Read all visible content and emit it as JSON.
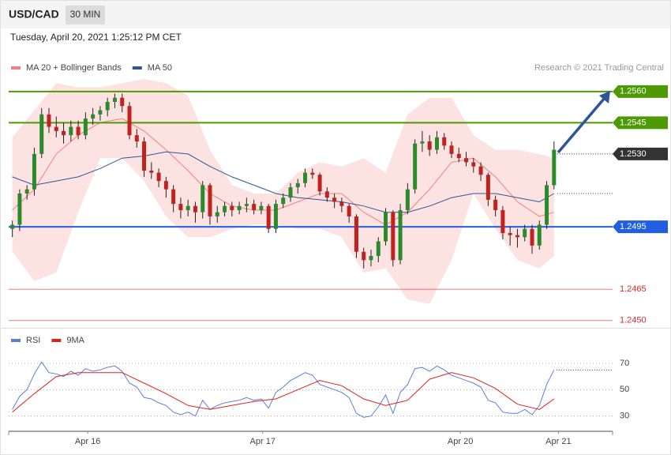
{
  "header": {
    "symbol": "USD/CAD",
    "interval": "30 MIN",
    "timestamp": "Tuesday, April 20, 2021 1:25:12 PM CET"
  },
  "chart_data": [
    {
      "type": "candlestick",
      "credit": "Research © 2021 Trading Central",
      "up_color": "#2b8a2b",
      "down_color": "#c0221f",
      "xlim": [
        -0.5,
        82
      ],
      "ylim": [
        1.2448,
        1.2566
      ],
      "ohlc": [
        [
          1.2494,
          1.2498,
          1.249,
          1.2496
        ],
        [
          1.2496,
          1.2513,
          1.2493,
          1.2511
        ],
        [
          1.2511,
          1.2515,
          1.2508,
          1.2513
        ],
        [
          1.2513,
          1.2533,
          1.251,
          1.253
        ],
        [
          1.253,
          1.2552,
          1.2528,
          1.2549
        ],
        [
          1.2549,
          1.2552,
          1.254,
          1.2543
        ],
        [
          1.2543,
          1.2548,
          1.2538,
          1.2541
        ],
        [
          1.2541,
          1.2545,
          1.2535,
          1.2539
        ],
        [
          1.2539,
          1.2546,
          1.2536,
          1.2543
        ],
        [
          1.2543,
          1.2546,
          1.2537,
          1.2539
        ],
        [
          1.2539,
          1.255,
          1.2537,
          1.2547
        ],
        [
          1.2547,
          1.2552,
          1.2544,
          1.2549
        ],
        [
          1.2549,
          1.2553,
          1.2546,
          1.2551
        ],
        [
          1.2551,
          1.2557,
          1.2548,
          1.2555
        ],
        [
          1.2555,
          1.2559,
          1.2552,
          1.2557
        ],
        [
          1.2557,
          1.2559,
          1.255,
          1.2553
        ],
        [
          1.2553,
          1.2555,
          1.2537,
          1.2539
        ],
        [
          1.2539,
          1.2542,
          1.2533,
          1.2536
        ],
        [
          1.2536,
          1.2538,
          1.2519,
          1.2522
        ],
        [
          1.2522,
          1.2526,
          1.2518,
          1.2521
        ],
        [
          1.2521,
          1.2523,
          1.2514,
          1.2517
        ],
        [
          1.2517,
          1.2519,
          1.2509,
          1.2513
        ],
        [
          1.2513,
          1.2515,
          1.2502,
          1.2506
        ],
        [
          1.2506,
          1.2509,
          1.2499,
          1.2503
        ],
        [
          1.2503,
          1.2508,
          1.25,
          1.2505
        ],
        [
          1.2505,
          1.2507,
          1.2497,
          1.2502
        ],
        [
          1.2502,
          1.2517,
          1.2499,
          1.2515
        ],
        [
          1.2515,
          1.2516,
          1.2496,
          1.25
        ],
        [
          1.25,
          1.2505,
          1.2497,
          1.2502
        ],
        [
          1.2502,
          1.2507,
          1.25,
          1.2505
        ],
        [
          1.2505,
          1.2507,
          1.25,
          1.2503
        ],
        [
          1.2503,
          1.2507,
          1.2501,
          1.2505
        ],
        [
          1.2505,
          1.2509,
          1.2502,
          1.2506
        ],
        [
          1.2506,
          1.2508,
          1.2501,
          1.2503
        ],
        [
          1.2503,
          1.2507,
          1.2501,
          1.2505
        ],
        [
          1.2505,
          1.2506,
          1.2492,
          1.2494
        ],
        [
          1.2494,
          1.2508,
          1.2492,
          1.2506
        ],
        [
          1.2506,
          1.2511,
          1.2504,
          1.2509
        ],
        [
          1.2509,
          1.2516,
          1.2507,
          1.2514
        ],
        [
          1.2514,
          1.2518,
          1.2511,
          1.2516
        ],
        [
          1.2516,
          1.2523,
          1.2514,
          1.2521
        ],
        [
          1.2521,
          1.2523,
          1.2518,
          1.252
        ],
        [
          1.252,
          1.2521,
          1.251,
          1.2512
        ],
        [
          1.2512,
          1.2514,
          1.2507,
          1.2509
        ],
        [
          1.2509,
          1.2511,
          1.2504,
          1.2507
        ],
        [
          1.2507,
          1.2509,
          1.2502,
          1.2505
        ],
        [
          1.2505,
          1.2506,
          1.2497,
          1.25
        ],
        [
          1.25,
          1.2501,
          1.248,
          1.2483
        ],
        [
          1.2483,
          1.2485,
          1.2475,
          1.2479
        ],
        [
          1.2479,
          1.2484,
          1.2476,
          1.2481
        ],
        [
          1.2481,
          1.249,
          1.2478,
          1.2488
        ],
        [
          1.2488,
          1.2504,
          1.2486,
          1.2502
        ],
        [
          1.2502,
          1.2503,
          1.2476,
          1.2479
        ],
        [
          1.2479,
          1.2506,
          1.2477,
          1.2503
        ],
        [
          1.2503,
          1.2516,
          1.2501,
          1.2513
        ],
        [
          1.2513,
          1.2537,
          1.2511,
          1.2535
        ],
        [
          1.2535,
          1.2541,
          1.2531,
          1.2536
        ],
        [
          1.2536,
          1.2539,
          1.2529,
          1.2532
        ],
        [
          1.2532,
          1.2541,
          1.253,
          1.2538
        ],
        [
          1.2538,
          1.254,
          1.2532,
          1.2534
        ],
        [
          1.2534,
          1.2536,
          1.2528,
          1.253
        ],
        [
          1.253,
          1.2533,
          1.2526,
          1.2528
        ],
        [
          1.2528,
          1.2531,
          1.2524,
          1.2526
        ],
        [
          1.2526,
          1.2528,
          1.2521,
          1.2524
        ],
        [
          1.2524,
          1.2526,
          1.2517,
          1.252
        ],
        [
          1.252,
          1.2521,
          1.2505,
          1.2508
        ],
        [
          1.2508,
          1.251,
          1.25,
          1.2503
        ],
        [
          1.2503,
          1.2505,
          1.2489,
          1.2492
        ],
        [
          1.2492,
          1.2495,
          1.2486,
          1.2491
        ],
        [
          1.2491,
          1.2494,
          1.2485,
          1.249
        ],
        [
          1.249,
          1.2496,
          1.2488,
          1.2494
        ],
        [
          1.2494,
          1.2496,
          1.2482,
          1.2486
        ],
        [
          1.2486,
          1.2498,
          1.2484,
          1.2496
        ],
        [
          1.2496,
          1.2517,
          1.2494,
          1.2515
        ],
        [
          1.2515,
          1.2536,
          1.2513,
          1.2532
        ]
      ],
      "series": [
        {
          "name": "MA 20 + Bollinger Bands",
          "color": "#f08080",
          "band_color": "#fde2e2",
          "x": [
            0,
            3,
            6,
            9,
            12,
            15,
            18,
            21,
            24,
            27,
            30,
            33,
            36,
            39,
            42,
            45,
            48,
            51,
            54,
            57,
            60,
            63,
            66,
            69,
            72,
            74
          ],
          "values": [
            1.2503,
            1.2513,
            1.253,
            1.2539,
            1.2545,
            1.2547,
            1.2541,
            1.2532,
            1.2522,
            1.2511,
            1.2505,
            1.2503,
            1.2503,
            1.2507,
            1.2511,
            1.2511,
            1.2502,
            1.2496,
            1.2502,
            1.2513,
            1.2526,
            1.2528,
            1.2519,
            1.2507,
            1.25,
            1.2502
          ],
          "upper": [
            1.2538,
            1.2551,
            1.2564,
            1.2562,
            1.2562,
            1.2564,
            1.2566,
            1.2564,
            1.2558,
            1.2532,
            1.2515,
            1.2511,
            1.2511,
            1.2521,
            1.2526,
            1.2524,
            1.2528,
            1.2521,
            1.2549,
            1.2557,
            1.2557,
            1.2539,
            1.2532,
            1.2532,
            1.253,
            1.2528
          ],
          "lower": [
            1.2483,
            1.2469,
            1.2473,
            1.2502,
            1.2528,
            1.2528,
            1.2517,
            1.25,
            1.249,
            1.249,
            1.2494,
            1.2496,
            1.2496,
            1.2494,
            1.2494,
            1.249,
            1.2473,
            1.2475,
            1.246,
            1.2458,
            1.2479,
            1.2511,
            1.2494,
            1.2479,
            1.2475,
            1.2481
          ]
        },
        {
          "name": "MA 50",
          "color": "#2f5597",
          "x": [
            0,
            3,
            6,
            9,
            12,
            15,
            18,
            21,
            24,
            27,
            30,
            33,
            36,
            39,
            42,
            45,
            48,
            51,
            54,
            57,
            60,
            63,
            66,
            69,
            72,
            74
          ],
          "values": [
            1.2519,
            1.2515,
            1.2517,
            1.2519,
            1.2523,
            1.2528,
            1.2529,
            1.2531,
            1.253,
            1.2524,
            1.2519,
            1.2515,
            1.2511,
            1.2509,
            1.2508,
            1.2507,
            1.2505,
            1.2502,
            1.2502,
            1.2505,
            1.2509,
            1.2511,
            1.2511,
            1.2509,
            1.2507,
            1.2511
          ]
        }
      ],
      "levels": [
        {
          "value": 1.256,
          "label": "1.2560",
          "color": "#4d9a06",
          "style": "tag",
          "line": "solid"
        },
        {
          "value": 1.2545,
          "label": "1.2545",
          "color": "#4d9a06",
          "style": "tag",
          "line": "solid"
        },
        {
          "value": 1.253,
          "label": "1.2530",
          "color": "#333333",
          "style": "tag",
          "line": "dotted"
        },
        {
          "value": 1.2495,
          "label": "1.2495",
          "color": "#1f5fe0",
          "style": "tag",
          "line": "solid"
        },
        {
          "value": 1.2465,
          "label": "1.2465",
          "color": "#e02a2a",
          "style": "text",
          "line": "solid"
        },
        {
          "value": 1.245,
          "label": "1.2450",
          "color": "#e02a2a",
          "style": "text",
          "line": "solid"
        }
      ]
    },
    {
      "type": "line",
      "xlim": [
        -0.5,
        82
      ],
      "ylim": [
        22,
        79
      ],
      "yticks": [
        70,
        50,
        30
      ],
      "grid": true,
      "xticks": [
        {
          "value": 10.3,
          "label": "Apr 16"
        },
        {
          "value": 34.2,
          "label": "Apr 17"
        },
        {
          "value": 61.2,
          "label": "Apr 20"
        },
        {
          "value": 74.6,
          "label": "Apr 21"
        }
      ],
      "series": [
        {
          "name": "RSI",
          "color": "#5b7fd6",
          "values": [
            35,
            45,
            50,
            62,
            71,
            63,
            62,
            60,
            64,
            61,
            66,
            64,
            65,
            67,
            68,
            64,
            55,
            52,
            44,
            43,
            40,
            38,
            33,
            31,
            33,
            30,
            42,
            35,
            38,
            40,
            41,
            42,
            44,
            42,
            43,
            36,
            48,
            52,
            57,
            60,
            63,
            61,
            54,
            52,
            50,
            48,
            44,
            32,
            29,
            30,
            37,
            46,
            32,
            48,
            54,
            66,
            67,
            64,
            68,
            65,
            61,
            59,
            57,
            55,
            52,
            42,
            40,
            33,
            32,
            32,
            35,
            31,
            38,
            54,
            65
          ]
        },
        {
          "name": "9MA",
          "color": "#e02020",
          "x": [
            0,
            3,
            6,
            9,
            12,
            15,
            18,
            21,
            24,
            27,
            30,
            33,
            36,
            39,
            42,
            45,
            48,
            51,
            54,
            57,
            60,
            63,
            66,
            69,
            72,
            74
          ],
          "values": [
            33,
            47,
            60,
            63,
            63,
            63,
            55,
            47,
            38,
            35,
            38,
            41,
            43,
            50,
            57,
            53,
            43,
            38,
            42,
            58,
            63,
            59,
            51,
            39,
            35,
            43
          ]
        }
      ]
    }
  ]
}
